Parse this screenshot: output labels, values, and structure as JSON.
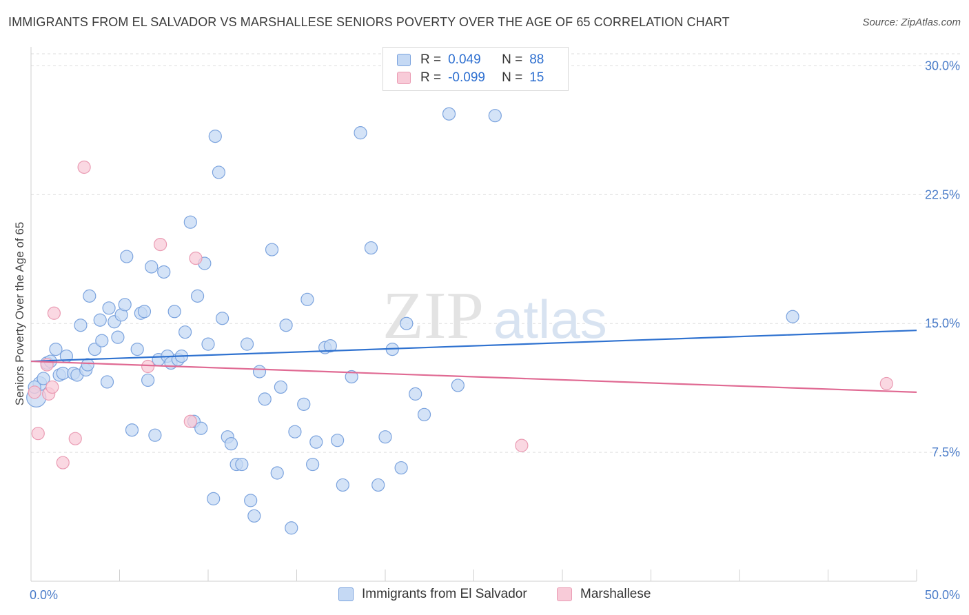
{
  "title": "IMMIGRANTS FROM EL SALVADOR VS MARSHALLESE SENIORS POVERTY OVER THE AGE OF 65 CORRELATION CHART",
  "source": "Source: ZipAtlas.com",
  "watermark": {
    "zip": "ZIP",
    "atlas": "atlas"
  },
  "legend": {
    "rows": [
      {
        "r_label": "R =",
        "r_value": "0.049",
        "n_label": "N =",
        "n_value": "88"
      },
      {
        "r_label": "R =",
        "r_value": "-0.099",
        "n_label": "N =",
        "n_value": "15"
      }
    ]
  },
  "colors": {
    "blue_fill": "#c5d9f4",
    "blue_stroke": "#7ba3de",
    "blue_line": "#2f72d0",
    "pink_fill": "#f8cbd8",
    "pink_stroke": "#ea9bb3",
    "pink_line": "#e06a93",
    "tick_text": "#4a7cc9",
    "grid": "#dddddd"
  },
  "chart_data": {
    "type": "scatter",
    "title": "IMMIGRANTS FROM EL SALVADOR VS MARSHALLESE SENIORS POVERTY OVER THE AGE OF 65 CORRELATION CHART",
    "xlabel": "",
    "ylabel": "Seniors Poverty Over the Age of 65",
    "xlim": [
      0,
      50
    ],
    "ylim": [
      0,
      30.7
    ],
    "x_ticks": [
      "0.0%",
      "50.0%"
    ],
    "y_ticks": [
      {
        "value": 7.5,
        "label": "7.5%"
      },
      {
        "value": 15.0,
        "label": "15.0%"
      },
      {
        "value": 22.5,
        "label": "22.5%"
      },
      {
        "value": 30.0,
        "label": "30.0%"
      }
    ],
    "grid": true,
    "legend_position": "bottom",
    "series": [
      {
        "name": "Immigrants from El Salvador",
        "color": "#7ba3de",
        "trend": {
          "x": [
            0,
            50
          ],
          "y": [
            12.8,
            14.6
          ]
        },
        "points": [
          [
            0.3,
            10.7,
            14
          ],
          [
            0.5,
            11.5,
            10
          ],
          [
            0.7,
            11.8,
            9
          ],
          [
            0.9,
            12.7,
            9
          ],
          [
            1.1,
            12.8,
            9
          ],
          [
            1.4,
            13.5,
            9
          ],
          [
            1.6,
            12.0,
            9
          ],
          [
            1.8,
            12.1,
            9
          ],
          [
            2.0,
            13.1,
            9
          ],
          [
            2.4,
            12.1,
            9
          ],
          [
            2.6,
            12.0,
            9
          ],
          [
            2.8,
            14.9,
            9
          ],
          [
            3.1,
            12.3,
            9
          ],
          [
            3.2,
            12.6,
            9
          ],
          [
            3.3,
            16.6,
            9
          ],
          [
            3.6,
            13.5,
            9
          ],
          [
            3.9,
            15.2,
            9
          ],
          [
            4.0,
            14.0,
            9
          ],
          [
            4.3,
            11.6,
            9
          ],
          [
            4.4,
            15.9,
            9
          ],
          [
            4.7,
            15.1,
            9
          ],
          [
            4.9,
            14.2,
            9
          ],
          [
            5.1,
            15.5,
            9
          ],
          [
            5.3,
            16.1,
            9
          ],
          [
            5.4,
            18.9,
            9
          ],
          [
            5.7,
            8.8,
            9
          ],
          [
            6.0,
            13.5,
            9
          ],
          [
            6.2,
            15.6,
            9
          ],
          [
            6.4,
            15.7,
            9
          ],
          [
            6.6,
            11.7,
            9
          ],
          [
            6.8,
            18.3,
            9
          ],
          [
            7.0,
            8.5,
            9
          ],
          [
            7.2,
            12.9,
            9
          ],
          [
            7.5,
            18.0,
            9
          ],
          [
            7.7,
            13.1,
            9
          ],
          [
            7.9,
            12.7,
            9
          ],
          [
            8.1,
            15.7,
            9
          ],
          [
            8.3,
            12.9,
            9
          ],
          [
            8.5,
            13.1,
            9
          ],
          [
            8.7,
            14.5,
            9
          ],
          [
            9.0,
            20.9,
            9
          ],
          [
            9.2,
            9.3,
            9
          ],
          [
            9.4,
            16.6,
            9
          ],
          [
            9.6,
            8.9,
            9
          ],
          [
            9.8,
            18.5,
            9
          ],
          [
            10.0,
            13.8,
            9
          ],
          [
            10.3,
            4.8,
            9
          ],
          [
            10.4,
            25.9,
            9
          ],
          [
            10.6,
            23.8,
            9
          ],
          [
            10.8,
            15.3,
            9
          ],
          [
            11.1,
            8.4,
            9
          ],
          [
            11.3,
            8.0,
            9
          ],
          [
            11.6,
            6.8,
            9
          ],
          [
            11.9,
            6.8,
            9
          ],
          [
            12.2,
            13.8,
            9
          ],
          [
            12.4,
            4.7,
            9
          ],
          [
            12.6,
            3.8,
            9
          ],
          [
            12.9,
            12.2,
            9
          ],
          [
            13.2,
            10.6,
            9
          ],
          [
            13.6,
            19.3,
            9
          ],
          [
            13.9,
            6.3,
            9
          ],
          [
            14.1,
            11.3,
            9
          ],
          [
            14.4,
            14.9,
            9
          ],
          [
            14.7,
            3.1,
            9
          ],
          [
            14.9,
            8.7,
            9
          ],
          [
            15.4,
            10.3,
            9
          ],
          [
            15.6,
            16.4,
            9
          ],
          [
            15.9,
            6.8,
            9
          ],
          [
            16.1,
            8.1,
            9
          ],
          [
            16.6,
            13.6,
            9
          ],
          [
            16.9,
            13.7,
            9
          ],
          [
            17.3,
            8.2,
            9
          ],
          [
            17.6,
            5.6,
            9
          ],
          [
            18.1,
            11.9,
            9
          ],
          [
            18.6,
            26.1,
            9
          ],
          [
            19.2,
            19.4,
            9
          ],
          [
            19.6,
            5.6,
            9
          ],
          [
            20.0,
            8.4,
            9
          ],
          [
            20.4,
            13.5,
            9
          ],
          [
            20.9,
            6.6,
            9
          ],
          [
            21.2,
            15.0,
            9
          ],
          [
            21.7,
            10.9,
            9
          ],
          [
            22.2,
            9.7,
            9
          ],
          [
            23.6,
            27.2,
            9
          ],
          [
            24.1,
            11.4,
            9
          ],
          [
            26.2,
            27.1,
            9
          ],
          [
            43.0,
            15.4,
            9
          ],
          [
            0.2,
            11.3,
            9
          ]
        ]
      },
      {
        "name": "Marshallese",
        "color": "#ea9bb3",
        "trend": {
          "x": [
            0,
            50
          ],
          "y": [
            12.8,
            11.0
          ]
        },
        "points": [
          [
            0.2,
            11.0,
            9
          ],
          [
            0.4,
            8.6,
            9
          ],
          [
            0.9,
            12.6,
            9
          ],
          [
            1.0,
            10.9,
            9
          ],
          [
            1.2,
            11.3,
            9
          ],
          [
            1.3,
            15.6,
            9
          ],
          [
            1.8,
            6.9,
            9
          ],
          [
            2.5,
            8.3,
            9
          ],
          [
            3.0,
            24.1,
            9
          ],
          [
            6.6,
            12.5,
            9
          ],
          [
            7.3,
            19.6,
            9
          ],
          [
            9.0,
            9.3,
            9
          ],
          [
            9.3,
            18.8,
            9
          ],
          [
            27.7,
            7.9,
            9
          ],
          [
            48.3,
            11.5,
            9
          ]
        ]
      }
    ]
  }
}
